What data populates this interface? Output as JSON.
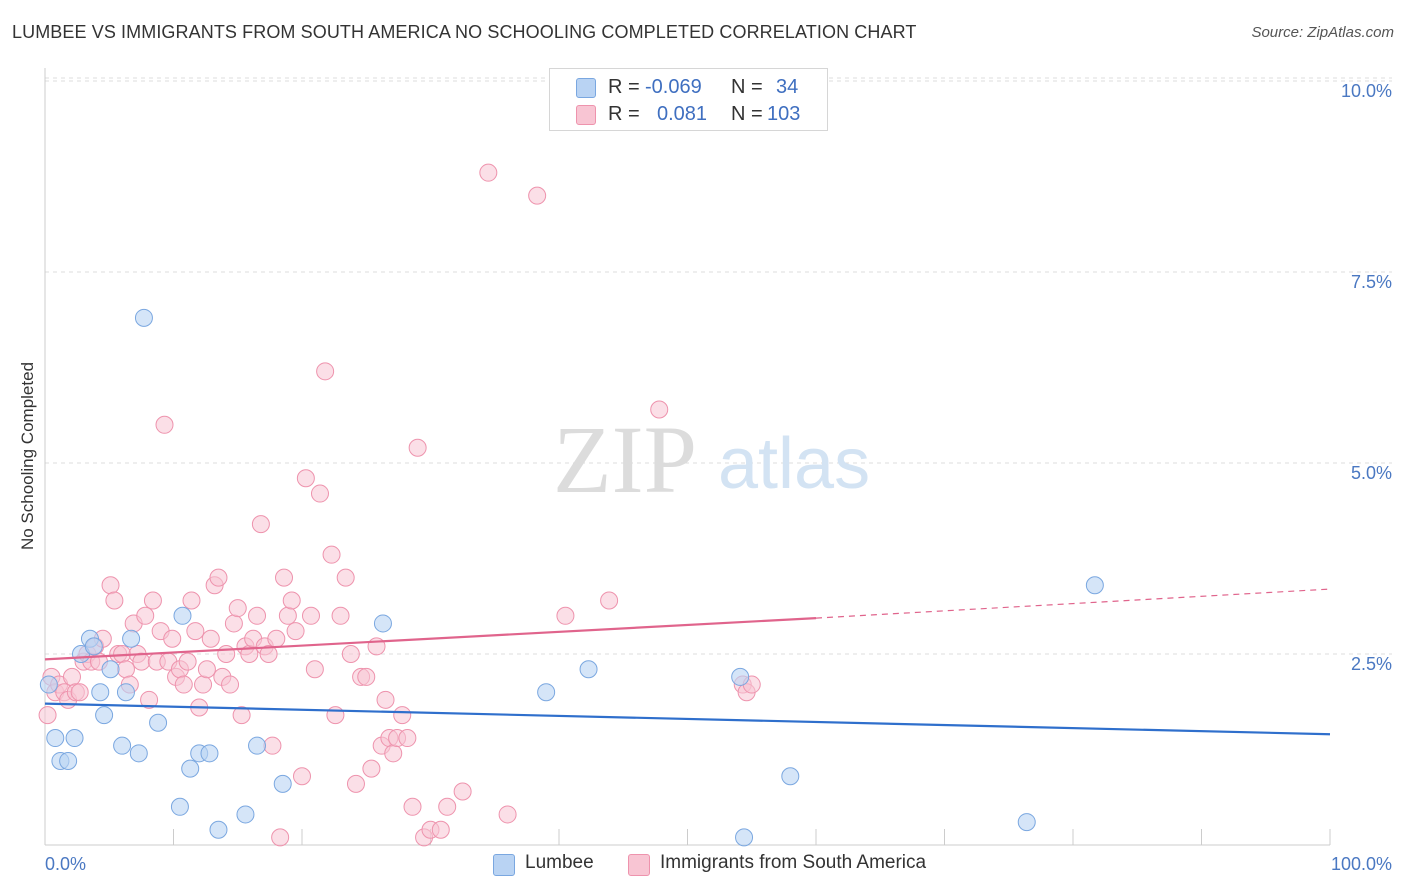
{
  "title": "LUMBEE VS IMMIGRANTS FROM SOUTH AMERICA NO SCHOOLING COMPLETED CORRELATION CHART",
  "source": "Source: ZipAtlas.com",
  "watermark": {
    "zip": "ZIP",
    "atlas": "atlas"
  },
  "legend": {
    "r_label": "R =",
    "n_label": "N =",
    "series": [
      {
        "r": "-0.069",
        "n": "34"
      },
      {
        "r": "0.081",
        "n": "103"
      }
    ]
  },
  "colors": {
    "lumbee_fill": "#b9d3f3",
    "lumbee_stroke": "#7aa7e0",
    "lumbee_line": "#2f6fcc",
    "sa_fill": "#f8c5d3",
    "sa_stroke": "#ee93ad",
    "sa_line": "#e0648c",
    "axis_text": "#4a78c2",
    "grid": "#dcdcdc"
  },
  "chart_data": {
    "type": "scatter",
    "title": "LUMBEE VS IMMIGRANTS FROM SOUTH AMERICA NO SCHOOLING COMPLETED CORRELATION CHART",
    "xlabel": "",
    "ylabel": "No Schooling Completed",
    "xlim": [
      0,
      100
    ],
    "ylim": [
      0,
      10.5
    ],
    "x_tick_labels": [
      "0.0%",
      "100.0%"
    ],
    "y_ticks": [
      2.5,
      5.0,
      7.5,
      10.0
    ],
    "y_tick_labels": [
      "2.5%",
      "5.0%",
      "7.5%",
      "10.0%"
    ],
    "grid": true,
    "series": [
      {
        "name": "Lumbee",
        "points": [
          [
            0.3,
            2.1
          ],
          [
            0.8,
            1.4
          ],
          [
            1.2,
            1.1
          ],
          [
            1.8,
            1.1
          ],
          [
            2.3,
            1.4
          ],
          [
            2.8,
            2.5
          ],
          [
            3.5,
            2.7
          ],
          [
            3.8,
            2.6
          ],
          [
            4.3,
            2.0
          ],
          [
            4.6,
            1.7
          ],
          [
            5.1,
            2.3
          ],
          [
            6.0,
            1.3
          ],
          [
            6.3,
            2.0
          ],
          [
            6.7,
            2.7
          ],
          [
            7.3,
            1.2
          ],
          [
            7.7,
            6.9
          ],
          [
            8.8,
            1.6
          ],
          [
            10.5,
            0.5
          ],
          [
            10.7,
            3.0
          ],
          [
            11.3,
            1.0
          ],
          [
            12.0,
            1.2
          ],
          [
            12.8,
            1.2
          ],
          [
            13.5,
            0.2
          ],
          [
            15.6,
            0.4
          ],
          [
            16.5,
            1.3
          ],
          [
            18.5,
            0.8
          ],
          [
            26.3,
            2.9
          ],
          [
            39.0,
            2.0
          ],
          [
            42.3,
            2.3
          ],
          [
            54.1,
            2.2
          ],
          [
            54.4,
            0.1
          ],
          [
            58.0,
            0.9
          ],
          [
            76.4,
            0.3
          ],
          [
            81.7,
            3.4
          ]
        ]
      },
      {
        "name": "Immigrants from South America",
        "points": [
          [
            0.2,
            1.7
          ],
          [
            0.5,
            2.2
          ],
          [
            0.8,
            2.0
          ],
          [
            1.1,
            2.1
          ],
          [
            1.5,
            2.0
          ],
          [
            1.8,
            1.9
          ],
          [
            2.1,
            2.2
          ],
          [
            2.4,
            2.0
          ],
          [
            2.7,
            2.0
          ],
          [
            3.0,
            2.4
          ],
          [
            3.3,
            2.5
          ],
          [
            3.6,
            2.4
          ],
          [
            3.9,
            2.6
          ],
          [
            4.2,
            2.4
          ],
          [
            4.5,
            2.7
          ],
          [
            5.1,
            3.4
          ],
          [
            5.4,
            3.2
          ],
          [
            5.7,
            2.5
          ],
          [
            6.0,
            2.5
          ],
          [
            6.3,
            2.3
          ],
          [
            6.6,
            2.1
          ],
          [
            6.9,
            2.9
          ],
          [
            7.2,
            2.5
          ],
          [
            7.5,
            2.4
          ],
          [
            7.8,
            3.0
          ],
          [
            8.1,
            1.9
          ],
          [
            8.4,
            3.2
          ],
          [
            8.7,
            2.4
          ],
          [
            9.0,
            2.8
          ],
          [
            9.3,
            5.5
          ],
          [
            9.6,
            2.4
          ],
          [
            9.9,
            2.7
          ],
          [
            10.2,
            2.2
          ],
          [
            10.5,
            2.3
          ],
          [
            10.8,
            2.1
          ],
          [
            11.1,
            2.4
          ],
          [
            11.4,
            3.2
          ],
          [
            11.7,
            2.8
          ],
          [
            12.0,
            1.8
          ],
          [
            12.3,
            2.1
          ],
          [
            12.6,
            2.3
          ],
          [
            12.9,
            2.7
          ],
          [
            13.2,
            3.4
          ],
          [
            13.5,
            3.5
          ],
          [
            13.8,
            2.2
          ],
          [
            14.1,
            2.5
          ],
          [
            14.4,
            2.1
          ],
          [
            14.7,
            2.9
          ],
          [
            15.0,
            3.1
          ],
          [
            15.3,
            1.7
          ],
          [
            15.6,
            2.6
          ],
          [
            15.9,
            2.5
          ],
          [
            16.2,
            2.7
          ],
          [
            16.5,
            3.0
          ],
          [
            16.8,
            4.2
          ],
          [
            17.1,
            2.6
          ],
          [
            17.4,
            2.5
          ],
          [
            17.7,
            1.3
          ],
          [
            18.0,
            2.7
          ],
          [
            18.3,
            0.1
          ],
          [
            18.6,
            3.5
          ],
          [
            18.9,
            3.0
          ],
          [
            19.2,
            3.2
          ],
          [
            19.5,
            2.8
          ],
          [
            20.0,
            0.9
          ],
          [
            20.3,
            4.8
          ],
          [
            20.7,
            3.0
          ],
          [
            21.0,
            2.3
          ],
          [
            21.4,
            4.6
          ],
          [
            21.8,
            6.2
          ],
          [
            22.3,
            3.8
          ],
          [
            22.6,
            1.7
          ],
          [
            23.0,
            3.0
          ],
          [
            23.4,
            3.5
          ],
          [
            23.8,
            2.5
          ],
          [
            24.2,
            0.8
          ],
          [
            24.6,
            2.2
          ],
          [
            25.0,
            2.2
          ],
          [
            25.4,
            1.0
          ],
          [
            25.8,
            2.6
          ],
          [
            26.2,
            1.3
          ],
          [
            26.5,
            1.9
          ],
          [
            26.8,
            1.4
          ],
          [
            27.1,
            1.2
          ],
          [
            27.4,
            1.4
          ],
          [
            27.8,
            1.7
          ],
          [
            28.2,
            1.4
          ],
          [
            28.6,
            0.5
          ],
          [
            29.0,
            5.2
          ],
          [
            29.5,
            0.1
          ],
          [
            30.0,
            0.2
          ],
          [
            30.8,
            0.2
          ],
          [
            31.3,
            0.5
          ],
          [
            32.5,
            0.7
          ],
          [
            34.5,
            8.8
          ],
          [
            36.0,
            0.4
          ],
          [
            38.3,
            8.5
          ],
          [
            40.5,
            3.0
          ],
          [
            43.9,
            3.2
          ],
          [
            47.8,
            5.7
          ],
          [
            54.3,
            2.1
          ],
          [
            54.6,
            2.0
          ],
          [
            55.0,
            2.1
          ]
        ]
      }
    ],
    "trend_lines": [
      {
        "series": "Lumbee",
        "from": [
          0,
          1.85
        ],
        "to": [
          100,
          1.45
        ],
        "style": "solid"
      },
      {
        "series": "Immigrants from South America",
        "from": [
          0,
          2.43
        ],
        "to": [
          60,
          2.97
        ],
        "style": "solid"
      },
      {
        "series": "Immigrants from South America",
        "from": [
          60,
          2.97
        ],
        "to": [
          100,
          3.35
        ],
        "style": "dashed"
      }
    ]
  },
  "bottom_legend": [
    {
      "label": "Lumbee"
    },
    {
      "label": "Immigrants from South America"
    }
  ]
}
